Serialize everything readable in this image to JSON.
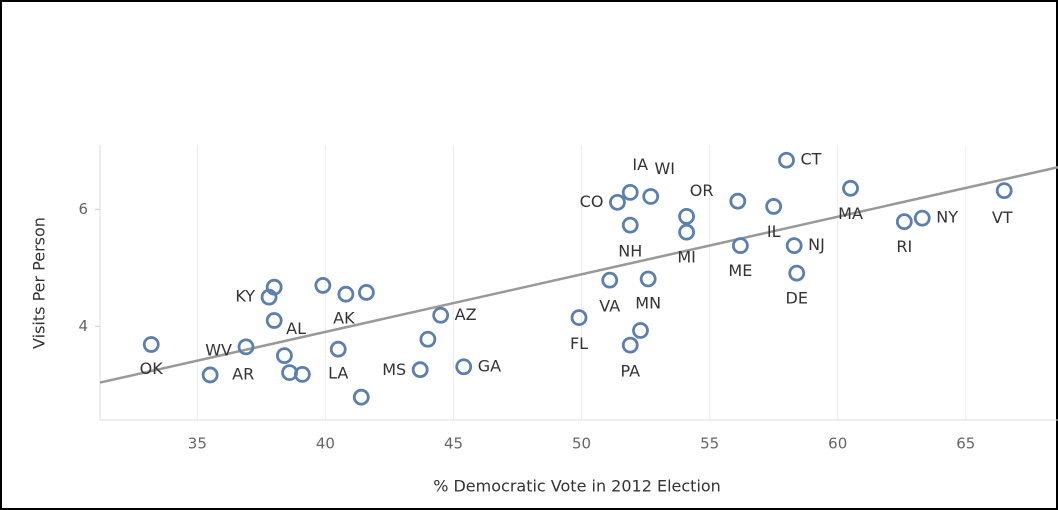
{
  "chart_data": {
    "type": "scatter",
    "x_label": "% Democratic Vote in 2012 Election",
    "y_label": "Visits Per Person",
    "labels": [
      "OK",
      "WV",
      "AR",
      "KY",
      null,
      "AL",
      null,
      null,
      null,
      null,
      "AK",
      null,
      "LA",
      null,
      "MS",
      null,
      "AZ",
      "GA",
      "FL",
      "VA",
      "CO",
      "IA",
      "WI",
      "NH",
      "MN",
      null,
      "PA",
      "OR",
      "MI",
      null,
      "ME",
      "IL",
      "CT",
      "NJ",
      "DE",
      "MA",
      "RI",
      "NY",
      "VT"
    ],
    "x": [
      33.2,
      36.9,
      35.5,
      37.8,
      38.0,
      38.0,
      38.4,
      38.6,
      39.1,
      39.9,
      40.8,
      41.6,
      40.5,
      41.4,
      43.7,
      44.0,
      44.5,
      45.4,
      49.9,
      51.1,
      51.4,
      51.9,
      52.7,
      51.9,
      52.6,
      52.3,
      51.9,
      54.1,
      54.1,
      56.1,
      56.2,
      57.5,
      58.0,
      58.3,
      58.4,
      60.5,
      62.6,
      63.3,
      66.5
    ],
    "y": [
      3.69,
      3.65,
      3.17,
      4.5,
      4.67,
      4.1,
      3.5,
      3.21,
      3.18,
      4.7,
      4.55,
      4.58,
      3.61,
      2.79,
      3.26,
      3.78,
      4.19,
      3.31,
      4.15,
      4.79,
      6.12,
      6.29,
      6.22,
      5.73,
      4.81,
      3.93,
      3.68,
      5.88,
      5.61,
      6.14,
      5.38,
      6.05,
      6.84,
      5.38,
      4.91,
      6.36,
      5.79,
      5.85,
      6.32
    ],
    "color": "#5b7fae",
    "trendline": {
      "x": [
        31.2,
        68.6
      ],
      "y": [
        3.04,
        6.72
      ],
      "color": "#999999"
    },
    "xlim": [
      31.2,
      68.6
    ],
    "xticks": [
      35,
      40,
      45,
      50,
      55,
      60,
      65
    ],
    "ylim": [
      2.4,
      7.1
    ],
    "yticks": [
      4,
      6
    ],
    "grid": true
  }
}
